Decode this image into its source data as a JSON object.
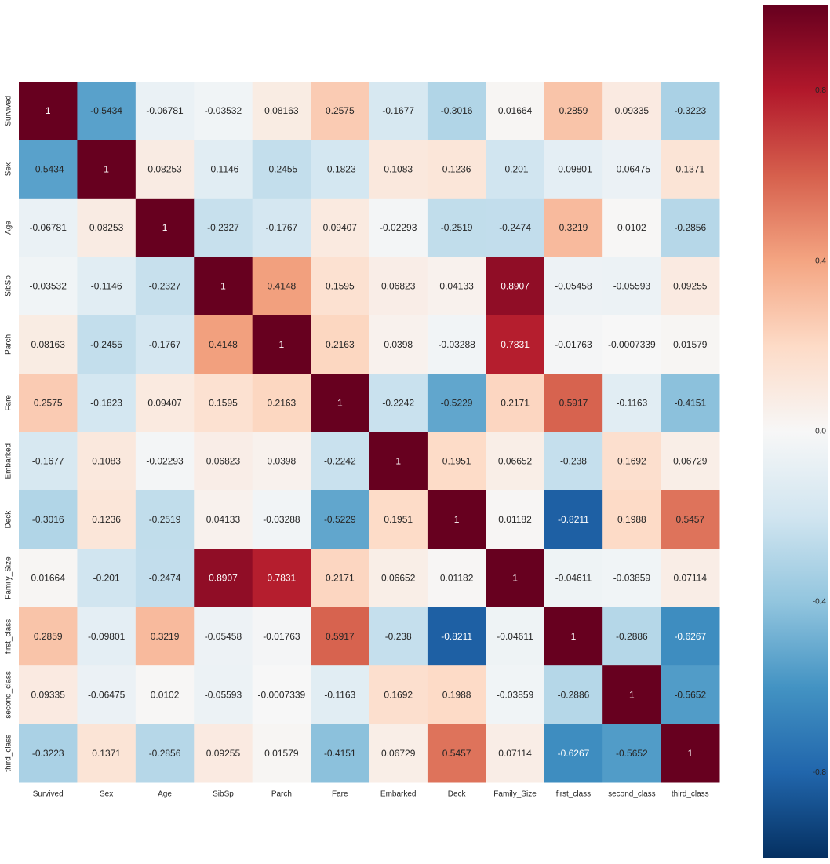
{
  "chart_data": {
    "type": "heatmap",
    "title": "",
    "xlabel": "",
    "ylabel": "",
    "labels": [
      "Survived",
      "Sex",
      "Age",
      "SibSp",
      "Parch",
      "Fare",
      "Embarked",
      "Deck",
      "Family_Size",
      "first_class",
      "second_class",
      "third_class"
    ],
    "cell_labels": [
      [
        "1",
        "-0.5434",
        "-0.06781",
        "-0.03532",
        "0.08163",
        "0.2575",
        "-0.1677",
        "-0.3016",
        "0.01664",
        "0.2859",
        "0.09335",
        "-0.3223"
      ],
      [
        "-0.5434",
        "1",
        "0.08253",
        "-0.1146",
        "-0.2455",
        "-0.1823",
        "0.1083",
        "0.1236",
        "-0.201",
        "-0.09801",
        "-0.06475",
        "0.1371"
      ],
      [
        "-0.06781",
        "0.08253",
        "1",
        "-0.2327",
        "-0.1767",
        "0.09407",
        "-0.02293",
        "-0.2519",
        "-0.2474",
        "0.3219",
        "0.0102",
        "-0.2856"
      ],
      [
        "-0.03532",
        "-0.1146",
        "-0.2327",
        "1",
        "0.4148",
        "0.1595",
        "0.06823",
        "0.04133",
        "0.8907",
        "-0.05458",
        "-0.05593",
        "0.09255"
      ],
      [
        "0.08163",
        "-0.2455",
        "-0.1767",
        "0.4148",
        "1",
        "0.2163",
        "0.0398",
        "-0.03288",
        "0.7831",
        "-0.01763",
        "-0.0007339",
        "0.01579"
      ],
      [
        "0.2575",
        "-0.1823",
        "0.09407",
        "0.1595",
        "0.2163",
        "1",
        "-0.2242",
        "-0.5229",
        "0.2171",
        "0.5917",
        "-0.1163",
        "-0.4151"
      ],
      [
        "-0.1677",
        "0.1083",
        "-0.02293",
        "0.06823",
        "0.0398",
        "-0.2242",
        "1",
        "0.1951",
        "0.06652",
        "-0.238",
        "0.1692",
        "0.06729"
      ],
      [
        "-0.3016",
        "0.1236",
        "-0.2519",
        "0.04133",
        "-0.03288",
        "-0.5229",
        "0.1951",
        "1",
        "0.01182",
        "-0.8211",
        "0.1988",
        "0.5457"
      ],
      [
        "0.01664",
        "-0.201",
        "-0.2474",
        "0.8907",
        "0.7831",
        "0.2171",
        "0.06652",
        "0.01182",
        "1",
        "-0.04611",
        "-0.03859",
        "0.07114"
      ],
      [
        "0.2859",
        "-0.09801",
        "0.3219",
        "-0.05458",
        "-0.01763",
        "0.5917",
        "-0.238",
        "-0.8211",
        "-0.04611",
        "1",
        "-0.2886",
        "-0.6267"
      ],
      [
        "0.09335",
        "-0.06475",
        "0.0102",
        "-0.05593",
        "-0.0007339",
        "-0.1163",
        "0.1692",
        "0.1988",
        "-0.03859",
        "-0.2886",
        "1",
        "-0.5652"
      ],
      [
        "-0.3223",
        "0.1371",
        "-0.2856",
        "0.09255",
        "0.01579",
        "-0.4151",
        "0.06729",
        "0.5457",
        "0.07114",
        "-0.6267",
        "-0.5652",
        "1"
      ]
    ],
    "colorbar": {
      "range": [
        -1,
        1
      ],
      "ticks": [
        0.8,
        0.4,
        0.0,
        -0.4,
        -0.8
      ],
      "tick_labels": [
        "0.8",
        "0.4",
        "0.0",
        "-0.4",
        "-0.8"
      ],
      "colormap": "RdBu_r"
    },
    "colors": {
      "stops": [
        "#053061",
        "#2166ac",
        "#4393c3",
        "#92c5de",
        "#d1e5f0",
        "#f7f7f7",
        "#fddbc7",
        "#f4a582",
        "#d6604d",
        "#b2182b",
        "#67001f"
      ],
      "text_dark": "#262626",
      "text_light": "#ffffff"
    }
  }
}
